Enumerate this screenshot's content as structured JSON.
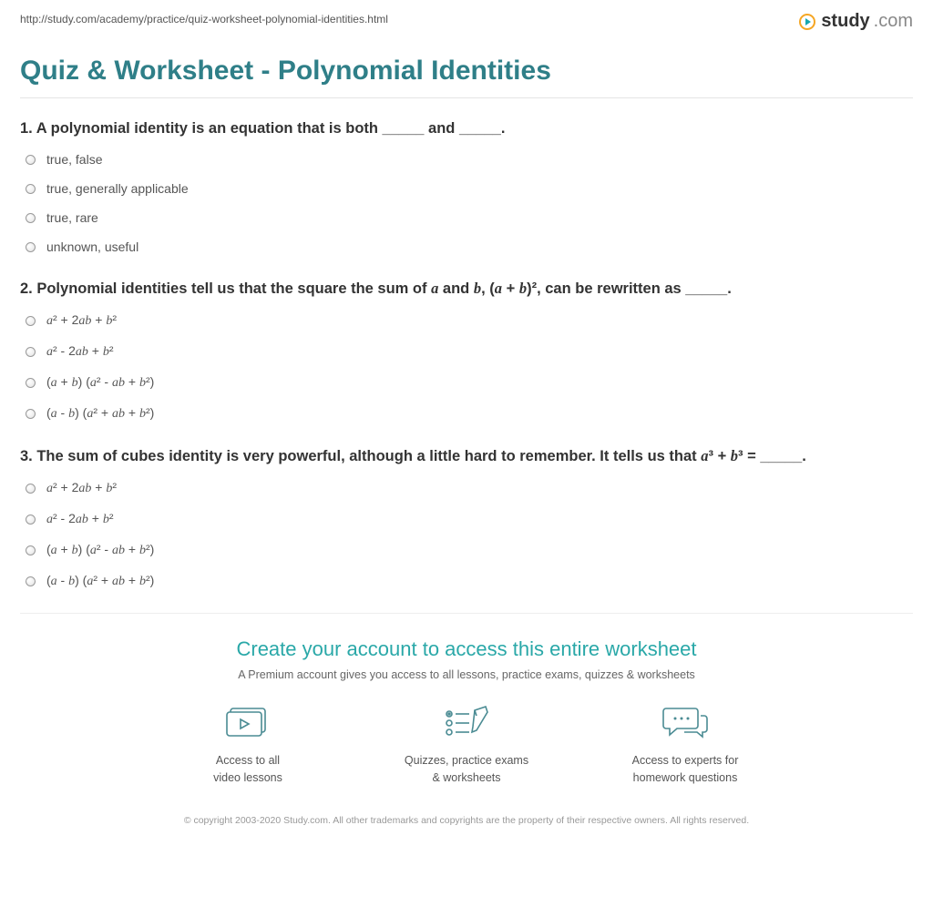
{
  "url": "http://study.com/academy/practice/quiz-worksheet-polynomial-identities.html",
  "brand": {
    "name": "study",
    "suffix": ".com"
  },
  "page_title": "Quiz & Worksheet - Polynomial Identities",
  "colors": {
    "title": "#2f7f88",
    "cta_title": "#2aa8a8",
    "icon_stroke": "#4a8b93",
    "text": "#444444",
    "muted": "#999999",
    "separator": "#e4e4e4"
  },
  "questions": [
    {
      "number": "1.",
      "text_html": "A polynomial identity is an equation that is both _____ and _____.",
      "options": [
        "true, false",
        "true, generally applicable",
        "true, rare",
        "unknown, useful"
      ]
    },
    {
      "number": "2.",
      "text_html": "Polynomial identities tell us that the square the sum of <span class='math-i'>a</span> and <span class='math-i'>b</span>, (<span class='math-i'>a</span> + <span class='math-i'>b</span>)², can be rewritten as _____.",
      "options": [
        "<span class='math-i'>a</span>² + 2<span class='math-i'>ab</span> + <span class='math-i'>b</span>²",
        "<span class='math-i'>a</span>² - 2<span class='math-i'>ab</span> + <span class='math-i'>b</span>²",
        "(<span class='math-i'>a</span> + <span class='math-i'>b</span>) (<span class='math-i'>a</span>² - <span class='math-i'>ab</span> + <span class='math-i'>b</span>²)",
        "(<span class='math-i'>a</span> - <span class='math-i'>b</span>) (<span class='math-i'>a</span>² + <span class='math-i'>ab</span> + <span class='math-i'>b</span>²)"
      ]
    },
    {
      "number": "3.",
      "text_html": "The sum of cubes identity is very powerful, although a little hard to remember. It tells us that <span class='math-i'>a</span>³ + <span class='math-i'>b</span>³ = _____.",
      "options": [
        "<span class='math-i'>a</span>² + 2<span class='math-i'>ab</span> + <span class='math-i'>b</span>²",
        "<span class='math-i'>a</span>² - 2<span class='math-i'>ab</span> + <span class='math-i'>b</span>²",
        "(<span class='math-i'>a</span> + <span class='math-i'>b</span>) (<span class='math-i'>a</span>² - <span class='math-i'>ab</span> + <span class='math-i'>b</span>²)",
        "(<span class='math-i'>a</span> - <span class='math-i'>b</span>) (<span class='math-i'>a</span>² + <span class='math-i'>ab</span> + <span class='math-i'>b</span>²)"
      ]
    }
  ],
  "cta": {
    "title": "Create your account to access this entire worksheet",
    "subtitle": "A Premium account gives you access to all lessons, practice exams, quizzes & worksheets",
    "benefits": [
      {
        "line1": "Access to all",
        "line2": "video lessons"
      },
      {
        "line1": "Quizzes, practice exams",
        "line2": "& worksheets"
      },
      {
        "line1": "Access to experts for",
        "line2": "homework questions"
      }
    ]
  },
  "footer": "© copyright 2003-2020 Study.com. All other trademarks and copyrights are the property of their respective owners. All rights reserved."
}
